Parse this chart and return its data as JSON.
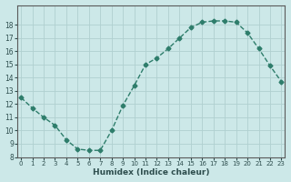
{
  "x": [
    0,
    1,
    2,
    3,
    4,
    5,
    6,
    7,
    8,
    9,
    10,
    11,
    12,
    13,
    14,
    15,
    16,
    17,
    18,
    19,
    20,
    21,
    22,
    23
  ],
  "y": [
    12.5,
    11.7,
    11.0,
    10.4,
    9.3,
    8.6,
    8.5,
    8.5,
    10.0,
    11.9,
    13.4,
    15.0,
    15.5,
    16.2,
    17.0,
    17.8,
    18.2,
    18.3,
    18.3,
    18.2,
    17.4,
    16.2,
    14.9,
    13.7
  ],
  "xlabel": "Humidex (Indice chaleur)",
  "ylim": [
    8,
    19
  ],
  "xlim": [
    0,
    23
  ],
  "yticks": [
    8,
    9,
    10,
    11,
    12,
    13,
    14,
    15,
    16,
    17,
    18
  ],
  "xticks": [
    0,
    1,
    2,
    3,
    4,
    5,
    6,
    7,
    8,
    9,
    10,
    11,
    12,
    13,
    14,
    15,
    16,
    17,
    18,
    19,
    20,
    21,
    22,
    23
  ],
  "line_color": "#2e7d6b",
  "marker_color": "#2e7d6b",
  "bg_color": "#cce8e8",
  "grid_color": "#b0d0d0",
  "axis_color": "#5a5a5a",
  "font_color": "#2e4e4e"
}
